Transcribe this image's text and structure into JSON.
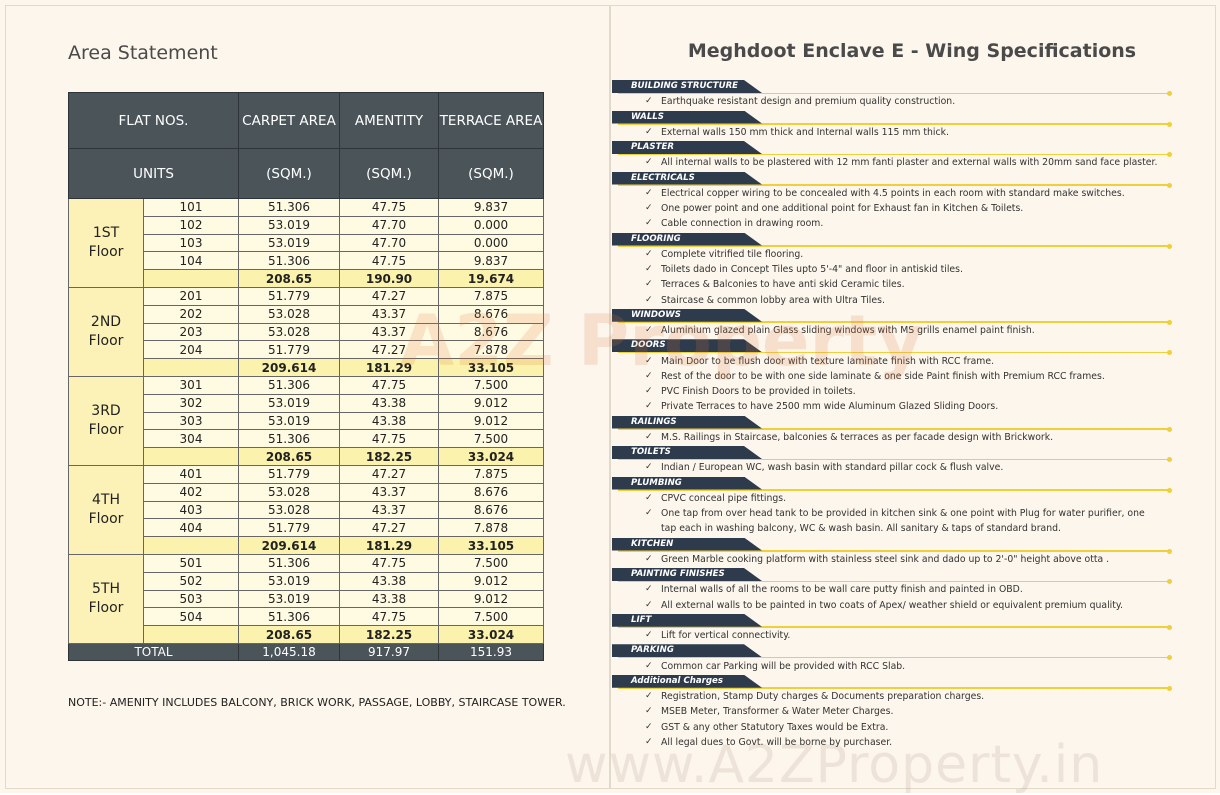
{
  "area_statement": {
    "title": "Area Statement",
    "header": {
      "row1": [
        "FLAT NOS.",
        "CARPET AREA",
        "AMENTITY",
        "TERRACE AREA"
      ],
      "row2": [
        "UNITS",
        "(SQM.)",
        "(SQM.)",
        "(SQM.)"
      ]
    },
    "floors": [
      {
        "label": [
          "1ST",
          "Floor"
        ],
        "units": [
          [
            "101",
            "51.306",
            "47.75",
            "9.837"
          ],
          [
            "102",
            "53.019",
            "47.70",
            "0.000"
          ],
          [
            "103",
            "53.019",
            "47.70",
            "0.000"
          ],
          [
            "104",
            "51.306",
            "47.75",
            "9.837"
          ]
        ],
        "subtotal": [
          "208.65",
          "190.90",
          "19.674"
        ]
      },
      {
        "label": [
          "2ND",
          "Floor"
        ],
        "units": [
          [
            "201",
            "51.779",
            "47.27",
            "7.875"
          ],
          [
            "202",
            "53.028",
            "43.37",
            "8.676"
          ],
          [
            "203",
            "53.028",
            "43.37",
            "8.676"
          ],
          [
            "204",
            "51.779",
            "47.27",
            "7.878"
          ]
        ],
        "subtotal": [
          "209.614",
          "181.29",
          "33.105"
        ]
      },
      {
        "label": [
          "3RD",
          "Floor"
        ],
        "units": [
          [
            "301",
            "51.306",
            "47.75",
            "7.500"
          ],
          [
            "302",
            "53.019",
            "43.38",
            "9.012"
          ],
          [
            "303",
            "53.019",
            "43.38",
            "9.012"
          ],
          [
            "304",
            "51.306",
            "47.75",
            "7.500"
          ]
        ],
        "subtotal": [
          "208.65",
          "182.25",
          "33.024"
        ]
      },
      {
        "label": [
          "4TH",
          "Floor"
        ],
        "units": [
          [
            "401",
            "51.779",
            "47.27",
            "7.875"
          ],
          [
            "402",
            "53.028",
            "43.37",
            "8.676"
          ],
          [
            "403",
            "53.028",
            "43.37",
            "8.676"
          ],
          [
            "404",
            "51.779",
            "47.27",
            "7.878"
          ]
        ],
        "subtotal": [
          "209.614",
          "181.29",
          "33.105"
        ]
      },
      {
        "label": [
          "5TH",
          "Floor"
        ],
        "units": [
          [
            "501",
            "51.306",
            "47.75",
            "7.500"
          ],
          [
            "502",
            "53.019",
            "43.38",
            "9.012"
          ],
          [
            "503",
            "53.019",
            "43.38",
            "9.012"
          ],
          [
            "504",
            "51.306",
            "47.75",
            "7.500"
          ]
        ],
        "subtotal": [
          "208.65",
          "182.25",
          "33.024"
        ]
      }
    ],
    "total": [
      "TOTAL",
      "1,045.18",
      "917.97",
      "151.93"
    ],
    "note": "NOTE:- AMENITY INCLUDES BALCONY, BRICK WORK, PASSAGE, LOBBY, STAIRCASE TOWER."
  },
  "specifications": {
    "title": "Meghdoot Enclave E - Wing Specifications",
    "sections": [
      {
        "heading": "BUILDING STRUCTURE",
        "items": [
          "Earthquake resistant design and premium quality construction."
        ]
      },
      {
        "heading": "WALLS",
        "items": [
          "External walls 150 mm thick and Internal walls 115 mm thick."
        ]
      },
      {
        "heading": "PLASTER",
        "items": [
          "All internal walls to be plastered with 12 mm fanti plaster and external walls with 20mm sand face plaster."
        ]
      },
      {
        "heading": "ELECTRICALS",
        "items": [
          "Electrical copper wiring to be concealed with 4.5 points in each room with standard make  switches.",
          "One power point and one additional point for Exhaust fan in Kitchen & Toilets.",
          "Cable connection in drawing room."
        ]
      },
      {
        "heading": "FLOORING",
        "items": [
          "Complete vitrified tile flooring.",
          "Toilets dado in Concept Tiles upto 5'-4\" and floor in antiskid tiles.",
          "Terraces & Balconies to have anti skid Ceramic tiles.",
          "Staircase & common lobby area with Ultra Tiles."
        ]
      },
      {
        "heading": "WINDOWS",
        "items": [
          "Aluminium glazed plain Glass sliding windows with MS grills enamel paint finish."
        ]
      },
      {
        "heading": "DOORS",
        "items": [
          "Main Door to be flush door with texture laminate finish with RCC frame.",
          "Rest of the door to be with one side laminate & one side Paint finish with Premium RCC frames.",
          "PVC Finish Doors to be provided in toilets.",
          "Private Terraces to have 2500 mm wide Aluminum Glazed Sliding Doors."
        ]
      },
      {
        "heading": "RAILINGS",
        "items": [
          "M.S. Railings in Staircase, balconies & terraces as per facade design with Brickwork."
        ]
      },
      {
        "heading": "TOILETS",
        "items": [
          "Indian / European WC, wash basin with standard pillar cock & flush valve."
        ]
      },
      {
        "heading": "PLUMBING",
        "items": [
          "CPVC conceal pipe fittings.",
          "One tap from over head tank to be provided in kitchen sink & one point with Plug for water purifier, one tap each in washing balcony, WC & wash basin. All sanitary & taps of standard  brand."
        ]
      },
      {
        "heading": "KITCHEN",
        "items": [
          "Green Marble cooking platform with stainless steel sink and dado up to 2'-0\" height above otta ."
        ]
      },
      {
        "heading": "PAINTING FINISHES",
        "items": [
          "Internal walls of all the rooms to be wall care putty finish and painted in OBD.",
          "All external walls to be painted in two coats of Apex/ weather shield or equivalent premium quality."
        ]
      },
      {
        "heading": "LIFT",
        "items": [
          "Lift for vertical connectivity."
        ]
      },
      {
        "heading": "PARKING",
        "items": [
          "Common car Parking will be provided with RCC Slab."
        ]
      },
      {
        "heading": "Additional Charges",
        "items": [
          "Registration, Stamp Duty charges & Documents preparation charges.",
          "MSEB Meter, Transformer & Water Meter Charges.",
          "GST & any other Statutory Taxes would be Extra.",
          "All legal dues to Govt. will be borne by purchaser."
        ]
      }
    ]
  },
  "watermark": {
    "logo": "A2Z Property",
    "url": "www.A2ZProperty.in"
  }
}
